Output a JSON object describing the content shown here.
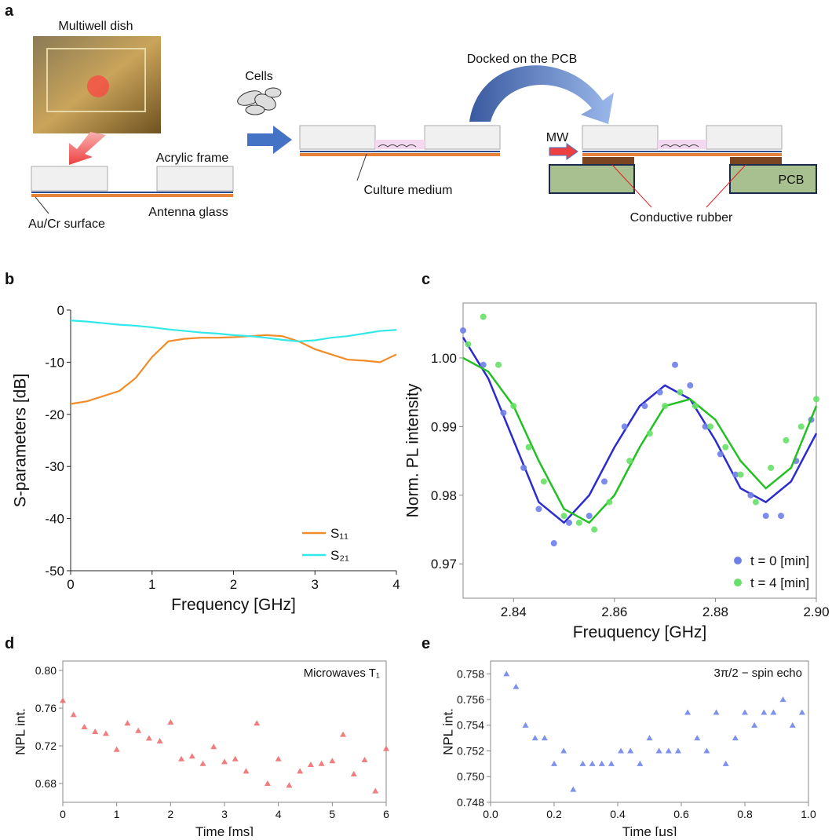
{
  "panel_a": {
    "label": "a",
    "photo_label": "Multiwell dish",
    "cells": "Cells",
    "docked": "Docked on the PCB",
    "acrylic": "Acrylic frame",
    "aucr": "Au/Cr surface",
    "antenna": "Antenna glass",
    "medium": "Culture medium",
    "mw": "MW",
    "pcb": "PCB",
    "rubber": "Conductive rubber"
  },
  "chart_data": [
    {
      "type": "line",
      "label": "b",
      "xlabel": "Frequency [GHz]",
      "ylabel": "S-parameters [dB]",
      "xlim": [
        0,
        4
      ],
      "ylim": [
        -50,
        0
      ],
      "xticks": [
        0,
        1,
        2,
        3,
        4
      ],
      "yticks": [
        -50,
        -40,
        -30,
        -20,
        -10,
        0
      ],
      "legend": "lower right",
      "x": [
        0,
        0.2,
        0.4,
        0.6,
        0.8,
        1.0,
        1.2,
        1.4,
        1.6,
        1.8,
        2.0,
        2.2,
        2.4,
        2.6,
        2.8,
        3.0,
        3.2,
        3.4,
        3.6,
        3.8,
        4.0
      ],
      "series": [
        {
          "name": "S₁₁",
          "color": "#f28c28",
          "values": [
            -18,
            -17.5,
            -16.5,
            -15.5,
            -13,
            -9,
            -6,
            -5.5,
            -5.3,
            -5.3,
            -5.2,
            -5,
            -4.8,
            -5,
            -6,
            -7.5,
            -8.5,
            -9.5,
            -9.7,
            -10,
            -8.5
          ]
        },
        {
          "name": "S₂₁",
          "color": "#33e8e8",
          "values": [
            -2,
            -2.2,
            -2.5,
            -2.8,
            -3,
            -3.3,
            -3.7,
            -4,
            -4.3,
            -4.5,
            -4.8,
            -5,
            -5.3,
            -5.7,
            -6,
            -5.8,
            -5.3,
            -5,
            -4.5,
            -4,
            -3.8
          ]
        }
      ]
    },
    {
      "type": "scatter",
      "label": "c",
      "marker": "circle",
      "xlabel": "Freuquency [GHz]",
      "ylabel": "Norm. PL intensity",
      "xlim": [
        2.83,
        2.9
      ],
      "ylim": [
        0.965,
        1.008
      ],
      "xticks": [
        2.84,
        2.86,
        2.88,
        {
          "value": 2.9,
          "label": "2.90"
        }
      ],
      "yticks": [
        0.97,
        0.98,
        0.99,
        {
          "value": 1,
          "label": "1.00"
        }
      ],
      "legend": "lower right",
      "fit_x": [
        2.83,
        2.835,
        2.84,
        2.845,
        2.85,
        2.855,
        2.86,
        2.865,
        2.87,
        2.875,
        2.88,
        2.885,
        2.89,
        2.895,
        2.9
      ],
      "series": [
        {
          "name": "t = 0 [min]",
          "color": "#2b2bd0",
          "point_color": "#6f7fe8",
          "x": [
            2.83,
            2.834,
            2.838,
            2.842,
            2.845,
            2.848,
            2.851,
            2.855,
            2.858,
            2.862,
            2.866,
            2.869,
            2.872,
            2.875,
            2.878,
            2.881,
            2.884,
            2.887,
            2.89,
            2.893,
            2.896,
            2.899
          ],
          "values": [
            1.004,
            0.999,
            0.992,
            0.984,
            0.978,
            0.973,
            0.976,
            0.977,
            0.982,
            0.99,
            0.993,
            0.995,
            0.999,
            0.996,
            0.99,
            0.986,
            0.983,
            0.98,
            0.977,
            0.977,
            0.985,
            0.991
          ],
          "fit": [
            1.003,
            0.997,
            0.988,
            0.979,
            0.976,
            0.98,
            0.987,
            0.993,
            0.996,
            0.994,
            0.988,
            0.981,
            0.979,
            0.982,
            0.989
          ]
        },
        {
          "name": "t = 4 [min]",
          "color": "#22c022",
          "point_color": "#66e066",
          "x": [
            2.831,
            2.834,
            2.837,
            2.84,
            2.843,
            2.846,
            2.85,
            2.853,
            2.856,
            2.859,
            2.863,
            2.867,
            2.87,
            2.873,
            2.876,
            2.879,
            2.882,
            2.885,
            2.888,
            2.891,
            2.894,
            2.897,
            2.9
          ],
          "values": [
            1.002,
            1.006,
            0.999,
            0.993,
            0.987,
            0.982,
            0.977,
            0.976,
            0.975,
            0.979,
            0.985,
            0.989,
            0.993,
            0.995,
            0.993,
            0.99,
            0.987,
            0.983,
            0.979,
            0.984,
            0.988,
            0.99,
            0.994
          ],
          "fit": [
            1,
            0.998,
            0.993,
            0.985,
            0.978,
            0.976,
            0.98,
            0.987,
            0.993,
            0.994,
            0.991,
            0.985,
            0.981,
            0.984,
            0.993
          ]
        }
      ]
    },
    {
      "type": "scatter",
      "label": "d",
      "marker": "triangle",
      "annotation": "Microwaves T₁",
      "xlabel": "Time [ms]",
      "ylabel": "NPL int.",
      "xlim": [
        0,
        6
      ],
      "ylim": [
        0.66,
        0.81
      ],
      "xticks": [
        0,
        1,
        2,
        3,
        4,
        5,
        6
      ],
      "yticks": [
        0.68,
        0.72,
        0.76,
        {
          "value": 0.8,
          "label": "0.80"
        }
      ],
      "series": [
        {
          "color": "#f07070",
          "x": [
            0,
            0.2,
            0.4,
            0.6,
            0.8,
            1,
            1.2,
            1.4,
            1.6,
            1.8,
            2,
            2.2,
            2.4,
            2.6,
            2.8,
            3,
            3.2,
            3.4,
            3.6,
            3.8,
            4,
            4.2,
            4.4,
            4.6,
            4.8,
            5,
            5.2,
            5.4,
            5.6,
            5.8,
            6
          ],
          "values": [
            0.768,
            0.753,
            0.74,
            0.735,
            0.733,
            0.716,
            0.744,
            0.736,
            0.728,
            0.725,
            0.745,
            0.706,
            0.709,
            0.701,
            0.719,
            0.703,
            0.706,
            0.693,
            0.744,
            0.68,
            0.706,
            0.678,
            0.693,
            0.7,
            0.701,
            0.704,
            0.732,
            0.69,
            0.705,
            0.672,
            0.717
          ]
        }
      ]
    },
    {
      "type": "scatter",
      "label": "e",
      "marker": "triangle",
      "annotation": "3π/2 − spin echo",
      "xlabel": "Time [μs]",
      "ylabel": "NPL int.",
      "xlim": [
        0,
        1
      ],
      "ylim": [
        0.748,
        0.759
      ],
      "xticks": [
        {
          "value": 0,
          "label": "0.0"
        },
        0.2,
        0.4,
        0.6,
        0.8,
        {
          "value": 1,
          "label": "1.0"
        }
      ],
      "yticks": [
        0.748,
        {
          "value": 0.75,
          "label": "0.750"
        },
        0.752,
        0.754,
        0.756,
        0.758
      ],
      "series": [
        {
          "color": "#6f86ea",
          "x": [
            0.05,
            0.08,
            0.11,
            0.14,
            0.17,
            0.2,
            0.23,
            0.26,
            0.29,
            0.32,
            0.35,
            0.38,
            0.41,
            0.44,
            0.47,
            0.5,
            0.53,
            0.56,
            0.59,
            0.62,
            0.65,
            0.68,
            0.71,
            0.74,
            0.77,
            0.8,
            0.83,
            0.86,
            0.89,
            0.92,
            0.95,
            0.98
          ],
          "values": [
            0.758,
            0.757,
            0.754,
            0.753,
            0.753,
            0.751,
            0.752,
            0.749,
            0.751,
            0.751,
            0.751,
            0.751,
            0.752,
            0.752,
            0.751,
            0.753,
            0.752,
            0.752,
            0.752,
            0.755,
            0.753,
            0.752,
            0.755,
            0.751,
            0.753,
            0.755,
            0.754,
            0.755,
            0.755,
            0.756,
            0.754,
            0.755
          ]
        }
      ]
    }
  ]
}
